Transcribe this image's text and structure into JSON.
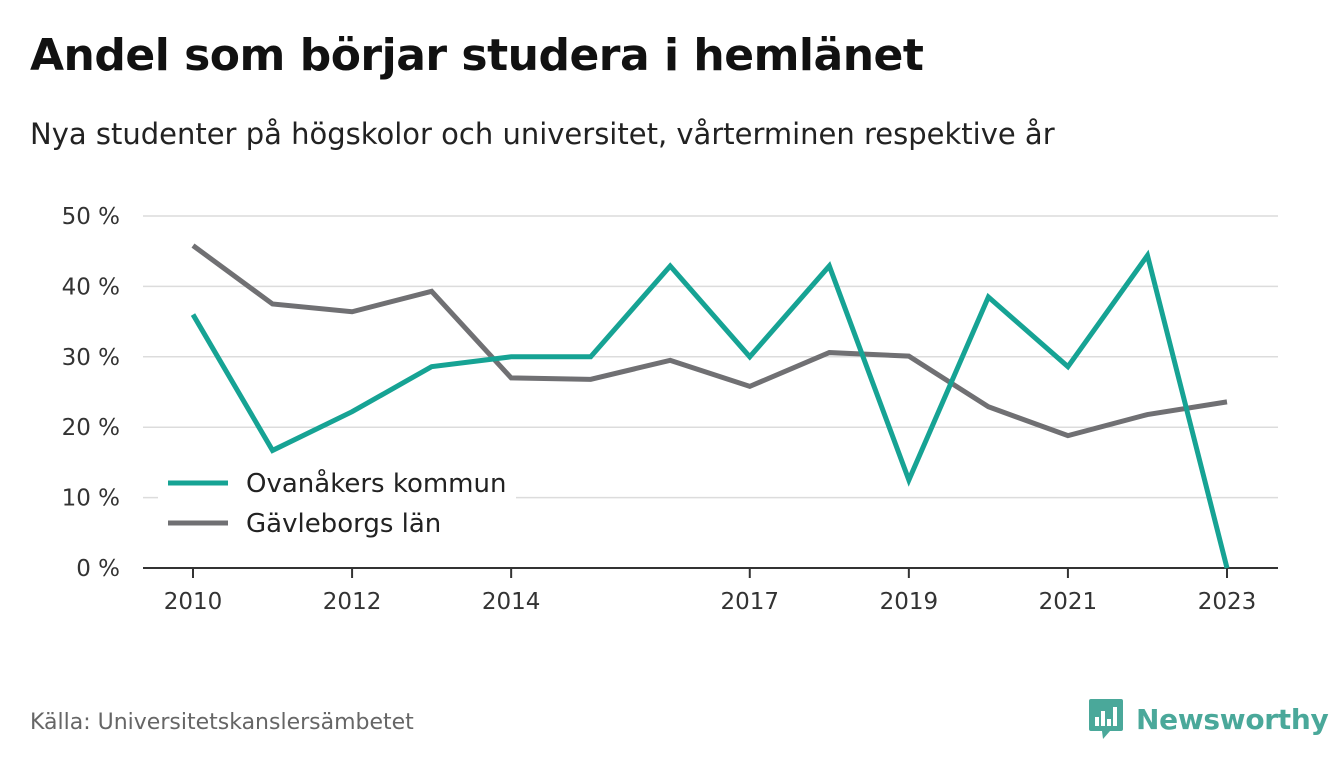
{
  "title": "Andel som börjar studera i hemlänet",
  "subtitle": "Nya studenter på högskolor och universitet, vårterminen respektive år",
  "source": "Källa: Universitetskanslersämbetet",
  "brand": {
    "name": "Newsworthy",
    "icon": "newsworthy-logo-icon",
    "color": "#4aa89a"
  },
  "chart_data": {
    "type": "line",
    "x": [
      2010,
      2011,
      2012,
      2013,
      2014,
      2015,
      2016,
      2017,
      2018,
      2019,
      2020,
      2021,
      2022,
      2023
    ],
    "x_tick_labels": [
      "2010",
      "2012",
      "2014",
      "2017",
      "2019",
      "2021",
      "2023"
    ],
    "x_tick_values": [
      2010,
      2012,
      2014,
      2017,
      2019,
      2021,
      2023
    ],
    "y_tick_labels": [
      "0 %",
      "10 %",
      "20 %",
      "30 %",
      "40 %",
      "50 %"
    ],
    "y_tick_values": [
      0,
      10,
      20,
      30,
      40,
      50
    ],
    "ylim": [
      0,
      50
    ],
    "xlim": [
      2010,
      2023
    ],
    "grid": "horizontal",
    "legend_position": "bottom-left",
    "series": [
      {
        "name": "Ovanåkers kommun",
        "color": "#16a394",
        "values": [
          36,
          16.7,
          22.2,
          28.6,
          30,
          30,
          42.9,
          30,
          42.9,
          12.5,
          38.5,
          28.6,
          44.4,
          0
        ]
      },
      {
        "name": "Gävleborgs län",
        "color": "#707073",
        "values": [
          45.8,
          37.5,
          36.4,
          39.3,
          27.0,
          26.8,
          29.5,
          25.8,
          30.6,
          30.1,
          22.9,
          18.8,
          21.8,
          23.6
        ]
      }
    ]
  }
}
